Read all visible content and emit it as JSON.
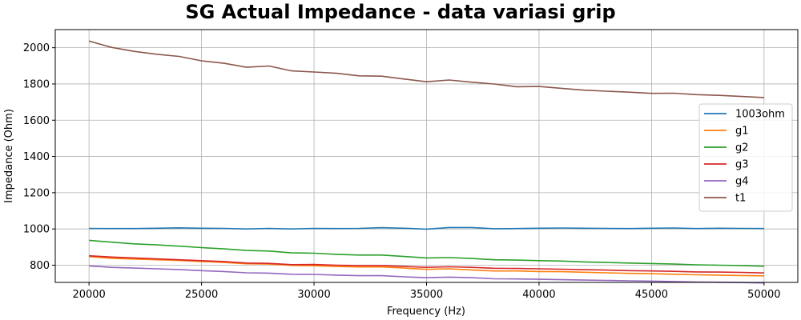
{
  "chart_data": {
    "type": "line",
    "title": "SG Actual Impedance - data variasi grip",
    "xlabel": "Frequency (Hz)",
    "ylabel": "Impedance (Ohm)",
    "xlim": [
      18500,
      51500
    ],
    "ylim": [
      705,
      2100
    ],
    "xticks": [
      20000,
      25000,
      30000,
      35000,
      40000,
      45000,
      50000
    ],
    "yticks": [
      800,
      1000,
      1200,
      1400,
      1600,
      1800,
      2000
    ],
    "grid": true,
    "legend_position": "right",
    "x": [
      20000,
      21000,
      22000,
      23000,
      24000,
      25000,
      26000,
      27000,
      28000,
      29000,
      30000,
      31000,
      32000,
      33000,
      34000,
      35000,
      36000,
      37000,
      38000,
      39000,
      40000,
      41000,
      42000,
      43000,
      44000,
      45000,
      46000,
      47000,
      48000,
      49000,
      50000
    ],
    "series": [
      {
        "name": "1003ohm",
        "color": "#1f77b4",
        "values": [
          1003,
          1002,
          1002,
          1004,
          1006,
          1004,
          1003,
          1000,
          1003,
          1000,
          1003,
          1002,
          1003,
          1007,
          1004,
          999,
          1008,
          1008,
          1001,
          1002,
          1004,
          1005,
          1004,
          1003,
          1002,
          1004,
          1005,
          1002,
          1004,
          1003,
          1002
        ]
      },
      {
        "name": "g1",
        "color": "#ff7f0e",
        "values": [
          847,
          838,
          834,
          830,
          826,
          820,
          815,
          808,
          806,
          799,
          797,
          793,
          790,
          790,
          784,
          777,
          780,
          774,
          768,
          768,
          765,
          764,
          761,
          758,
          755,
          753,
          750,
          747,
          745,
          743,
          741
        ]
      },
      {
        "name": "g2",
        "color": "#2ca02c",
        "values": [
          937,
          927,
          918,
          912,
          905,
          897,
          890,
          881,
          878,
          868,
          866,
          860,
          856,
          856,
          848,
          840,
          842,
          837,
          830,
          828,
          825,
          823,
          818,
          815,
          812,
          809,
          806,
          802,
          800,
          798,
          794
        ]
      },
      {
        "name": "g3",
        "color": "#d62728",
        "values": [
          852,
          845,
          840,
          835,
          830,
          825,
          820,
          812,
          810,
          803,
          804,
          800,
          798,
          798,
          793,
          788,
          791,
          788,
          783,
          782,
          780,
          778,
          775,
          773,
          770,
          768,
          766,
          763,
          762,
          760,
          757
        ]
      },
      {
        "name": "g4",
        "color": "#9467bd",
        "values": [
          796,
          788,
          784,
          780,
          776,
          770,
          765,
          758,
          756,
          750,
          749,
          745,
          742,
          742,
          736,
          731,
          734,
          731,
          725,
          724,
          722,
          720,
          718,
          716,
          714,
          712,
          710,
          707,
          706,
          704,
          702
        ]
      },
      {
        "name": "t1",
        "color": "#8c564b",
        "values": [
          2037,
          2002,
          1980,
          1964,
          1952,
          1928,
          1914,
          1892,
          1899,
          1872,
          1866,
          1859,
          1845,
          1843,
          1827,
          1812,
          1822,
          1810,
          1800,
          1785,
          1786,
          1776,
          1766,
          1760,
          1755,
          1748,
          1749,
          1741,
          1737,
          1731,
          1725
        ]
      }
    ]
  }
}
